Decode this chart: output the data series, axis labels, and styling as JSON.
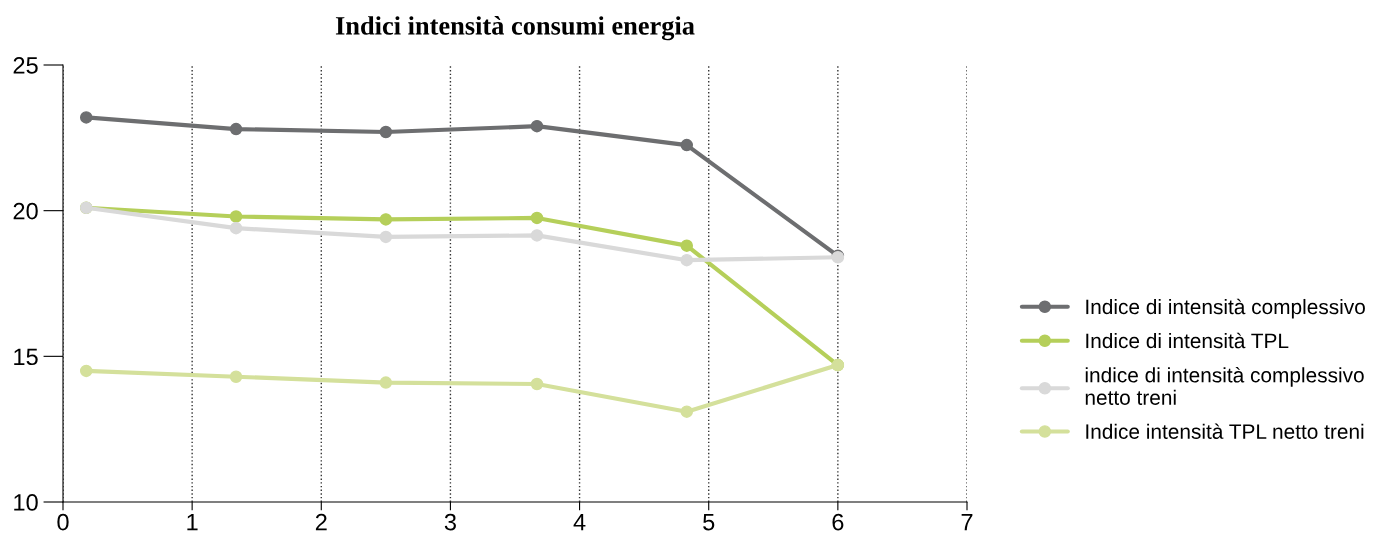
{
  "chart_data": {
    "type": "line",
    "title": "Indici intensità consumi energia",
    "x": [
      0.18,
      1.34,
      2.5,
      3.67,
      4.83,
      6.0
    ],
    "series": [
      {
        "name": "Indice di intensità complessivo",
        "color": "#6d6e70",
        "values": [
          23.2,
          22.8,
          22.7,
          22.9,
          22.25,
          18.45
        ]
      },
      {
        "name": "Indice di intensità TPL",
        "color": "#b5cf5a",
        "values": [
          20.1,
          19.8,
          19.7,
          19.75,
          18.8,
          14.7
        ]
      },
      {
        "name": "indice di intensità complessivo\nnetto treni",
        "color": "#d9d9d9",
        "values": [
          20.1,
          19.4,
          19.1,
          19.15,
          18.3,
          18.4
        ]
      },
      {
        "name": "Indice intensità TPL netto treni",
        "color": "#d4e09b",
        "values": [
          14.5,
          14.3,
          14.1,
          14.05,
          13.1,
          14.7
        ]
      }
    ],
    "xlim": [
      0,
      7
    ],
    "xticks": [
      0,
      1,
      2,
      3,
      4,
      5,
      6,
      7
    ],
    "ylim": [
      10,
      25
    ],
    "yticks": [
      10,
      15,
      20,
      25
    ],
    "grid": "x",
    "legend": "right",
    "marker": "circle",
    "line_style": "solid"
  }
}
